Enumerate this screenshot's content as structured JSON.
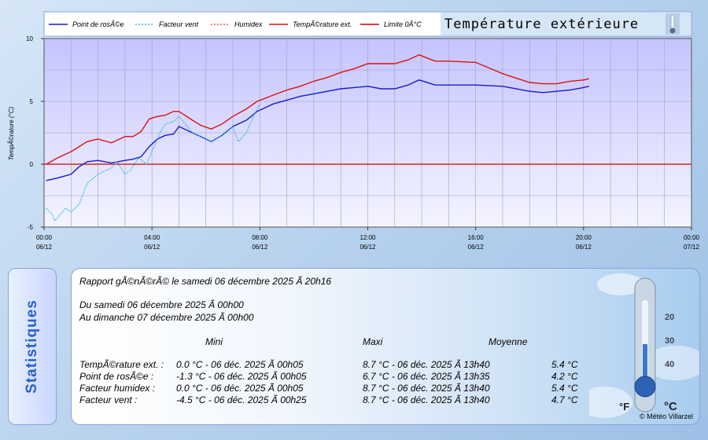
{
  "chart_data": {
    "type": "line",
    "title": "Température extérieure",
    "ylabel": "TempÃ©rature (°C)",
    "ylim": [
      -5,
      10
    ],
    "yticks": [
      "10",
      "5",
      "0",
      "-5"
    ],
    "xlim_hours": [
      0,
      24
    ],
    "xticks": [
      {
        "time": "00:00",
        "date": "06/12"
      },
      {
        "time": "04:00",
        "date": "06/12"
      },
      {
        "time": "08:00",
        "date": "06/12"
      },
      {
        "time": "12:00",
        "date": "06/12"
      },
      {
        "time": "16:00",
        "date": "06/12"
      },
      {
        "time": "20:00",
        "date": "06/12"
      },
      {
        "time": "00:00",
        "date": "07/12"
      }
    ],
    "limit": {
      "name": "Limite 0Â°C",
      "value": 0,
      "color": "#cc0000"
    },
    "series": [
      {
        "name": "Point de rosÃ©e",
        "color": "#1a1acc",
        "style": "solid",
        "x": [
          0.08,
          0.5,
          1.0,
          1.3,
          1.6,
          2.0,
          2.5,
          3.0,
          3.3,
          3.6,
          3.9,
          4.2,
          4.5,
          4.8,
          5.0,
          5.5,
          5.8,
          6.2,
          6.6,
          7.0,
          7.5,
          7.9,
          8.5,
          9.0,
          9.5,
          10,
          10.5,
          11,
          11.5,
          12,
          12.5,
          13,
          13.5,
          13.9,
          14.5,
          15,
          16,
          17,
          18,
          18.5,
          19,
          19.5,
          20,
          20.2
        ],
        "y": [
          -1.3,
          -1.1,
          -0.8,
          -0.2,
          0.2,
          0.3,
          0.1,
          0.3,
          0.4,
          0.6,
          1.4,
          2.0,
          2.3,
          2.4,
          3.0,
          2.5,
          2.2,
          1.8,
          2.3,
          3.0,
          3.5,
          4.2,
          4.8,
          5.1,
          5.4,
          5.6,
          5.8,
          6.0,
          6.1,
          6.2,
          6.0,
          6.0,
          6.3,
          6.7,
          6.3,
          6.3,
          6.3,
          6.2,
          5.8,
          5.7,
          5.8,
          5.9,
          6.1,
          6.2
        ]
      },
      {
        "name": "Facteur vent",
        "color": "#33bbdd",
        "style": "dotted",
        "x": [
          0.08,
          0.3,
          0.4,
          0.8,
          1.0,
          1.3,
          1.6,
          2.0,
          2.5,
          2.7,
          3.0,
          3.2,
          3.5,
          3.8,
          4.1,
          4.3,
          4.5,
          4.8,
          5.0,
          5.5,
          5.8,
          6.2,
          6.6,
          7.0,
          7.2,
          7.5,
          7.8,
          8.0
        ],
        "y": [
          -3.5,
          -4.0,
          -4.5,
          -3.5,
          -3.8,
          -3.2,
          -1.5,
          -0.8,
          -0.3,
          0.2,
          -0.8,
          -0.5,
          0.5,
          0.0,
          1.5,
          2.5,
          3.2,
          3.4,
          3.8,
          2.5,
          2.2,
          1.8,
          2.3,
          3.0,
          1.8,
          2.5,
          4.0,
          4.8
        ]
      },
      {
        "name": "Humidex",
        "color": "#dd6644",
        "style": "dotted",
        "x": [],
        "y": []
      },
      {
        "name": "TempÃ©rature ext.",
        "color": "#dd1111",
        "style": "solid",
        "x": [
          0.08,
          0.5,
          1.0,
          1.3,
          1.6,
          2.0,
          2.5,
          3.0,
          3.3,
          3.6,
          3.9,
          4.2,
          4.5,
          4.8,
          5.0,
          5.5,
          5.8,
          6.2,
          6.6,
          7.0,
          7.5,
          7.9,
          8.5,
          9.0,
          9.5,
          10,
          10.5,
          11,
          11.5,
          12,
          12.5,
          13,
          13.5,
          13.9,
          14.5,
          15,
          16,
          17,
          18,
          18.5,
          19,
          19.5,
          20,
          20.2
        ],
        "y": [
          0.0,
          0.5,
          1.0,
          1.4,
          1.8,
          2.0,
          1.7,
          2.2,
          2.2,
          2.6,
          3.6,
          3.8,
          3.9,
          4.2,
          4.2,
          3.5,
          3.1,
          2.8,
          3.2,
          3.8,
          4.4,
          5.0,
          5.5,
          5.9,
          6.2,
          6.6,
          6.9,
          7.3,
          7.6,
          8.0,
          8.0,
          8.0,
          8.3,
          8.7,
          8.2,
          8.2,
          8.1,
          7.2,
          6.5,
          6.4,
          6.4,
          6.6,
          6.7,
          6.8
        ]
      }
    ]
  },
  "stats": {
    "report": "Rapport gÃ©nÃ©rÃ© le samedi 06 décembre 2025 Ã  20h16",
    "from": "Du samedi 06 décembre 2025 Ã  00h00",
    "to": "Au dimanche 07 décembre 2025 Ã  00h00",
    "headers": {
      "mini": "Mini",
      "maxi": "Maxi",
      "avg": "Moyenne"
    },
    "rows": [
      {
        "label": "TempÃ©rature ext. :",
        "mini": "0.0 °C - 06 déc. 2025 Ã  00h05",
        "maxi": "8.7 °C - 06 déc. 2025 Ã  13h40",
        "avg": "5.4 °C"
      },
      {
        "label": "Point de rosÃ©e :",
        "mini": "-1.3 °C - 06 déc. 2025 Ã  00h05",
        "maxi": "6.7 °C - 06 déc. 2025 Ã  13h35",
        "avg": "4.2 °C"
      },
      {
        "label": "Facteur humidex :",
        "mini": "0.0 °C - 06 déc. 2025 Ã  00h05",
        "maxi": "8.7 °C - 06 déc. 2025 Ã  13h40",
        "avg": "5.4 °C"
      },
      {
        "label": "Facteur vent :",
        "mini": "-4.5 °C - 06 déc. 2025 Ã  00h25",
        "maxi": "8.7 °C - 06 déc. 2025 Ã  13h40",
        "avg": "4.7 °C"
      }
    ]
  },
  "sidebar_label": "Statistiques",
  "credit": "© Météo Villarzel",
  "thermo": {
    "c_label": "°C",
    "f_label": "°F",
    "scale": [
      "40",
      "30",
      "20"
    ]
  }
}
